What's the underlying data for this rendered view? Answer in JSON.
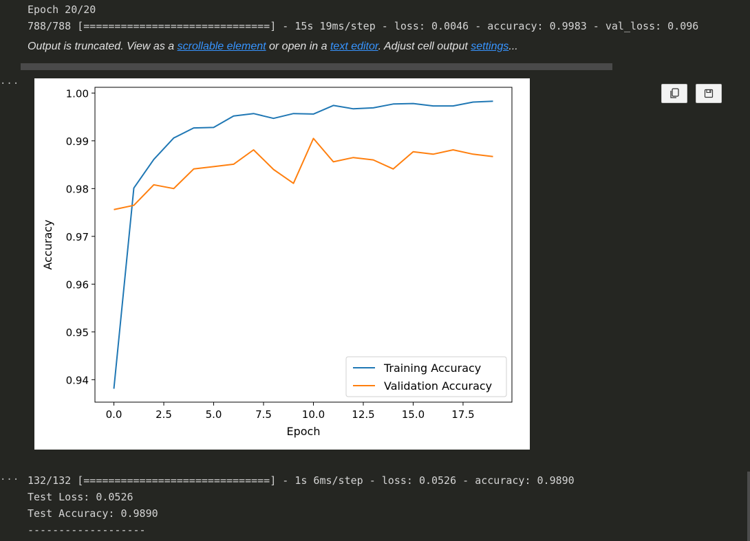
{
  "output_top": {
    "epoch_line": "Epoch 20/20",
    "progress_line": "788/788 [==============================] - 15s 19ms/step - loss: 0.0046 - accuracy: 0.9983 - val_loss: 0.096"
  },
  "truncation": {
    "prefix": "Output is truncated. View as a ",
    "scrollable_link": "scrollable element",
    "middle": " or open in a ",
    "editor_link": "text editor",
    "middle2": ". Adjust cell output ",
    "settings_link": "settings",
    "suffix": "..."
  },
  "gutter_marker": "···",
  "plot_toolbar": {
    "copy_icon": "copy-icon",
    "save_icon": "save-icon"
  },
  "chart_data": {
    "type": "line",
    "title": "",
    "xlabel": "Epoch",
    "ylabel": "Accuracy",
    "x": [
      0,
      1,
      2,
      3,
      4,
      5,
      6,
      7,
      8,
      9,
      10,
      11,
      12,
      13,
      14,
      15,
      16,
      17,
      18,
      19
    ],
    "xlim": [
      -0.95,
      19.95
    ],
    "ylim": [
      0.9353,
      1.0012
    ],
    "xticks": [
      0.0,
      2.5,
      5.0,
      7.5,
      10.0,
      12.5,
      15.0,
      17.5
    ],
    "xtick_labels": [
      "0.0",
      "2.5",
      "5.0",
      "7.5",
      "10.0",
      "12.5",
      "15.0",
      "17.5"
    ],
    "yticks": [
      0.94,
      0.95,
      0.96,
      0.97,
      0.98,
      0.99,
      1.0
    ],
    "ytick_labels": [
      "0.94",
      "0.95",
      "0.96",
      "0.97",
      "0.98",
      "0.99",
      "1.00"
    ],
    "legend_position": "lower-right",
    "grid": false,
    "series": [
      {
        "name": "Training Accuracy",
        "color": "#1f77b4",
        "values": [
          0.9381,
          0.9801,
          0.9861,
          0.9906,
          0.9927,
          0.9928,
          0.9952,
          0.9957,
          0.9947,
          0.9957,
          0.9956,
          0.9974,
          0.9967,
          0.9969,
          0.9977,
          0.9978,
          0.9973,
          0.9973,
          0.9981,
          0.9983
        ]
      },
      {
        "name": "Validation Accuracy",
        "color": "#ff7f0e",
        "values": [
          0.9756,
          0.9765,
          0.9808,
          0.98,
          0.9841,
          0.9846,
          0.9851,
          0.9881,
          0.984,
          0.9811,
          0.9905,
          0.9856,
          0.9865,
          0.986,
          0.9841,
          0.9877,
          0.9872,
          0.9881,
          0.9872,
          0.9867
        ]
      }
    ]
  },
  "output_bottom": {
    "progress_line": "132/132 [==============================] - 1s 6ms/step - loss: 0.0526 - accuracy: 0.9890",
    "test_loss": "Test Loss: 0.0526",
    "test_accuracy": "Test Accuracy: 0.9890",
    "separator": "-------------------"
  }
}
